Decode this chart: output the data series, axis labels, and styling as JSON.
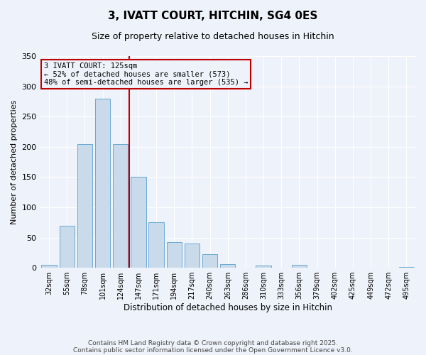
{
  "title": "3, IVATT COURT, HITCHIN, SG4 0ES",
  "subtitle": "Size of property relative to detached houses in Hitchin",
  "xlabel": "Distribution of detached houses by size in Hitchin",
  "ylabel": "Number of detached properties",
  "bar_color": "#c9daea",
  "bar_edge_color": "#6aaad4",
  "background_color": "#eef2fa",
  "grid_color": "#ffffff",
  "categories": [
    "32sqm",
    "55sqm",
    "78sqm",
    "101sqm",
    "124sqm",
    "147sqm",
    "171sqm",
    "194sqm",
    "217sqm",
    "240sqm",
    "263sqm",
    "286sqm",
    "310sqm",
    "333sqm",
    "356sqm",
    "379sqm",
    "402sqm",
    "425sqm",
    "449sqm",
    "472sqm",
    "495sqm"
  ],
  "values": [
    5,
    70,
    205,
    280,
    205,
    150,
    75,
    43,
    40,
    22,
    6,
    0,
    4,
    0,
    5,
    0,
    0,
    0,
    0,
    0,
    1
  ],
  "ylim": [
    0,
    350
  ],
  "yticks": [
    0,
    50,
    100,
    150,
    200,
    250,
    300,
    350
  ],
  "property_line_index": 4,
  "property_line_color": "#c00000",
  "annotation_line0": "3 IVATT COURT: 125sqm",
  "annotation_line1": "← 52% of detached houses are smaller (573)",
  "annotation_line2": "48% of semi-detached houses are larger (535) →",
  "annotation_box_color": "#c00000",
  "footer_line1": "Contains HM Land Registry data © Crown copyright and database right 2025.",
  "footer_line2": "Contains public sector information licensed under the Open Government Licence v3.0."
}
